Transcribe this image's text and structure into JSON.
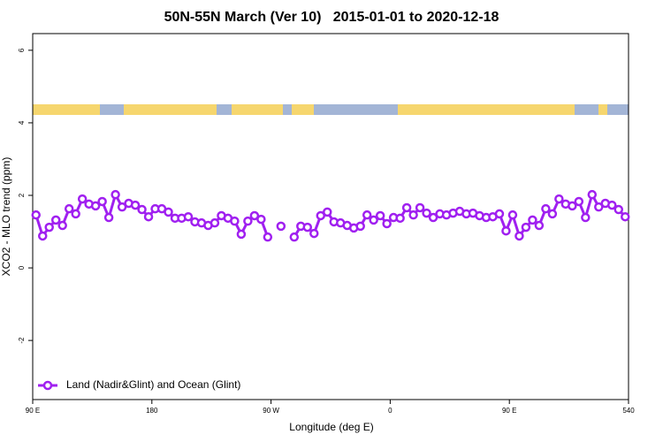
{
  "chart_data": {
    "type": "line",
    "title": "50N-55N March (Ver 10)   2015-01-01 to 2020-12-18",
    "x_label": "Longitude (deg E)",
    "y_label": "XCO2 - MLO trend (ppm)",
    "xlim": [
      90,
      540
    ],
    "ylim": [
      -3.63,
      6.46
    ],
    "xticks": [
      {
        "value": 90,
        "label": "90 E"
      },
      180,
      {
        "value": 270,
        "label": "90 W"
      },
      {
        "value": 360,
        "label": "0"
      },
      {
        "value": 450,
        "label": "90 E"
      },
      540
    ],
    "yticks": [
      -2,
      0,
      2,
      4,
      6
    ],
    "legend": "bottom-left",
    "x": [
      92.5,
      97.5,
      102.5,
      107.5,
      112.5,
      117.5,
      122.5,
      127.5,
      132.5,
      137.5,
      142.5,
      147.5,
      152.5,
      157.5,
      162.5,
      167.5,
      172.5,
      177.5,
      182.5,
      187.5,
      192.5,
      197.5,
      202.5,
      207.5,
      212.5,
      217.5,
      222.5,
      227.5,
      232.5,
      237.5,
      242.5,
      247.5,
      252.5,
      257.5,
      262.5,
      267.5,
      272.5,
      277.5,
      282.5,
      287.5,
      292.5,
      297.5,
      302.5,
      307.5,
      312.5,
      317.5,
      322.5,
      327.5,
      332.5,
      337.5,
      342.5,
      347.5,
      352.5,
      357.5,
      362.5,
      367.5,
      372.5,
      377.5,
      382.5,
      387.5,
      392.5,
      397.5,
      402.5,
      407.5,
      412.5,
      417.5,
      422.5,
      427.5,
      432.5,
      437.5,
      442.5,
      447.5,
      452.5,
      457.5,
      462.5,
      467.5,
      472.5,
      477.5,
      482.5,
      487.5,
      492.5,
      497.5,
      502.5,
      507.5,
      512.5,
      517.5,
      522.5,
      527.5,
      532.5,
      537.5
    ],
    "series": [
      {
        "name": "Land (Nadir&Glint) and Ocean (Glint)",
        "color": "#a020f0",
        "values": [
          1.46,
          0.88,
          1.12,
          1.32,
          1.17,
          1.63,
          1.49,
          1.9,
          1.76,
          1.71,
          1.83,
          1.39,
          2.02,
          1.68,
          1.78,
          1.73,
          1.61,
          1.41,
          1.63,
          1.63,
          1.54,
          1.37,
          1.37,
          1.41,
          1.27,
          1.24,
          1.17,
          1.24,
          1.44,
          1.37,
          1.29,
          0.93,
          1.29,
          1.44,
          1.34,
          0.85,
          null,
          1.15,
          null,
          0.85,
          1.15,
          1.12,
          0.95,
          1.44,
          1.54,
          1.27,
          1.24,
          1.17,
          1.1,
          1.15,
          1.46,
          1.32,
          1.44,
          1.22,
          1.39,
          1.37,
          1.66,
          1.46,
          1.66,
          1.51,
          1.39,
          1.49,
          1.46,
          1.51,
          1.56,
          1.49,
          1.51,
          1.44,
          1.39,
          1.41,
          1.49,
          1.02,
          1.46,
          0.88,
          1.12,
          1.32,
          1.17,
          1.63,
          1.49,
          1.9,
          1.76,
          1.71,
          1.83,
          1.39,
          2.02,
          1.68,
          1.78,
          1.73,
          1.61,
          1.41
        ]
      }
    ]
  }
}
